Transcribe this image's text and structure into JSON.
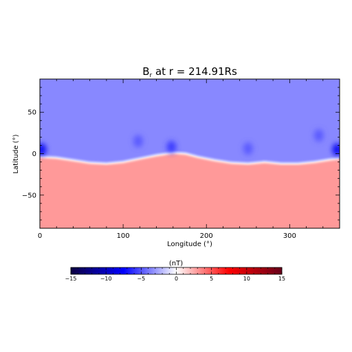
{
  "chart_data": {
    "type": "heatmap",
    "title": "B",
    "title_subscript": "r",
    "title_rest": " at r = 214.91Rs",
    "xlabel": "Longitude (°)",
    "ylabel": "Latitude (°)",
    "xlim": [
      0,
      360
    ],
    "ylim": [
      -90,
      90
    ],
    "x_ticks": [
      0,
      100,
      200,
      300
    ],
    "y_ticks": [
      -50,
      0,
      50
    ],
    "x_tick_labels": [
      "0",
      "100",
      "200",
      "300"
    ],
    "y_tick_labels": [
      "−50",
      "0",
      "50"
    ],
    "grid": false,
    "colorbar": {
      "label": "(nT)",
      "range": [
        -15,
        15
      ],
      "ticks": [
        -15,
        -10,
        -5,
        0,
        5,
        10,
        15
      ],
      "tick_labels": [
        "−15",
        "−10",
        "−5",
        "0",
        "5",
        "10",
        "15"
      ],
      "colormap": [
        "#0d0040",
        "#0000ff",
        "#ffffff",
        "#ff0000",
        "#66001a"
      ]
    },
    "north_value_nT": -3.5,
    "south_value_nT": 3.0,
    "current_sheet": {
      "longitude": [
        0,
        20,
        40,
        60,
        80,
        100,
        120,
        140,
        160,
        175,
        190,
        210,
        230,
        250,
        270,
        290,
        310,
        330,
        350,
        360
      ],
      "latitude": [
        -4,
        -5,
        -8,
        -11,
        -12,
        -10,
        -6,
        -2,
        1,
        0,
        -4,
        -8,
        -11,
        -12,
        -10,
        -12,
        -12,
        -10,
        -7,
        -6
      ]
    },
    "features": [
      {
        "longitude": 2,
        "latitude": 5,
        "value_nT": -8
      },
      {
        "longitude": 357,
        "latitude": 5,
        "value_nT": -8
      },
      {
        "longitude": 158,
        "latitude": 8,
        "value_nT": -6
      },
      {
        "longitude": 118,
        "latitude": 15,
        "value_nT": -5
      },
      {
        "longitude": 250,
        "latitude": 6,
        "value_nT": -5
      },
      {
        "longitude": 335,
        "latitude": 22,
        "value_nT": -5
      }
    ]
  }
}
